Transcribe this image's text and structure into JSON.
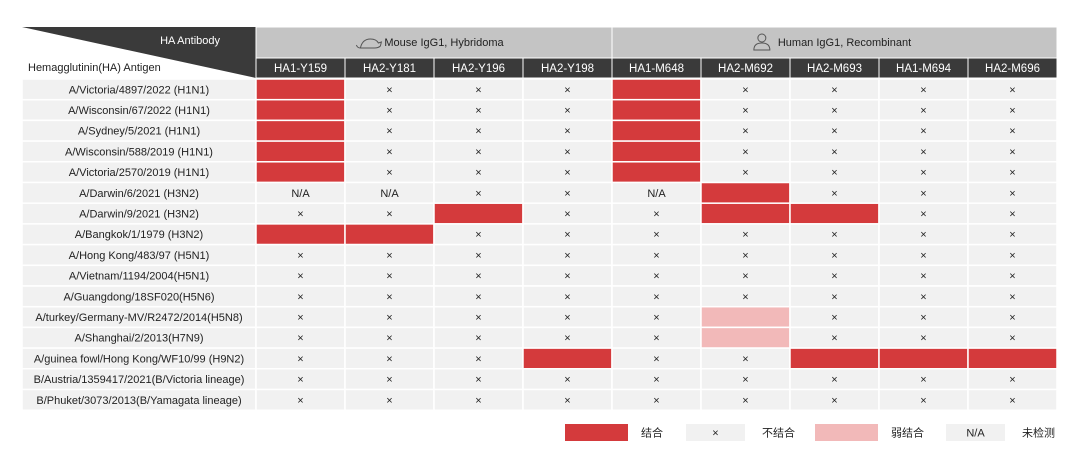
{
  "table": {
    "corner_top": "HA Antibody",
    "corner_bottom": "Hemagglutinin(HA) Antigen",
    "groups": [
      {
        "label": "Mouse IgG1, Hybridoma",
        "columns": [
          "HA1-Y159",
          "HA2-Y181",
          "HA2-Y196",
          "HA2-Y198"
        ]
      },
      {
        "label": "Human IgG1, Recombinant",
        "columns": [
          "HA1-M648",
          "HA2-M692",
          "HA2-M693",
          "HA1-M694",
          "HA2-M696"
        ]
      }
    ],
    "rows": [
      {
        "antigen": "A/Victoria/4897/2022 (H1N1)",
        "cells": [
          {
            "fill": "#d43a3c"
          },
          "×",
          "×",
          "×",
          {
            "fill": "#d43a3c"
          },
          "×",
          "×",
          "×",
          "×"
        ]
      },
      {
        "antigen": "A/Wisconsin/67/2022 (H1N1)",
        "cells": [
          {
            "fill": "#d43a3c"
          },
          "×",
          "×",
          "×",
          {
            "fill": "#d43a3c"
          },
          "×",
          "×",
          "×",
          "×"
        ]
      },
      {
        "antigen": "A/Sydney/5/2021 (H1N1)",
        "cells": [
          {
            "fill": "#d43a3c"
          },
          "×",
          "×",
          "×",
          {
            "fill": "#d43a3c"
          },
          "×",
          "×",
          "×",
          "×"
        ]
      },
      {
        "antigen": "A/Wisconsin/588/2019 (H1N1)",
        "cells": [
          {
            "fill": "#d43a3c"
          },
          "×",
          "×",
          "×",
          {
            "fill": "#d43a3c"
          },
          "×",
          "×",
          "×",
          "×"
        ]
      },
      {
        "antigen": "A/Victoria/2570/2019 (H1N1)",
        "cells": [
          {
            "fill": "#d43a3c"
          },
          "×",
          "×",
          "×",
          {
            "fill": "#d43a3c"
          },
          "×",
          "×",
          "×",
          "×"
        ]
      },
      {
        "antigen": "A/Darwin/6/2021 (H3N2)",
        "cells": [
          "N/A",
          "N/A",
          "×",
          "×",
          "N/A",
          {
            "fill": "#d43a3c"
          },
          "×",
          "×",
          "×"
        ]
      },
      {
        "antigen": "A/Darwin/9/2021 (H3N2)",
        "cells": [
          "×",
          "×",
          {
            "fill": "#d43a3c"
          },
          "×",
          "×",
          {
            "fill": "#d43a3c"
          },
          {
            "fill": "#d43a3c"
          },
          "×",
          "×"
        ]
      },
      {
        "antigen": "A/Bangkok/1/1979 (H3N2)",
        "cells": [
          {
            "fill": "#d43a3c"
          },
          {
            "fill": "#d43a3c"
          },
          "×",
          "×",
          "×",
          "×",
          "×",
          "×",
          "×"
        ]
      },
      {
        "antigen": "A/Hong Kong/483/97 (H5N1)",
        "cells": [
          "×",
          "×",
          "×",
          "×",
          "×",
          "×",
          "×",
          "×",
          "×"
        ]
      },
      {
        "antigen": "A/Vietnam/1194/2004(H5N1)",
        "cells": [
          "×",
          "×",
          "×",
          "×",
          "×",
          "×",
          "×",
          "×",
          "×"
        ]
      },
      {
        "antigen": "A/Guangdong/18SF020(H5N6)",
        "cells": [
          "×",
          "×",
          "×",
          "×",
          "×",
          "×",
          "×",
          "×",
          "×"
        ]
      },
      {
        "antigen": "A/turkey/Germany-MV/R2472/2014(H5N8)",
        "cells": [
          "×",
          "×",
          "×",
          "×",
          "×",
          {
            "fill": "#f2b9b9"
          },
          "×",
          "×",
          "×"
        ]
      },
      {
        "antigen": "A/Shanghai/2/2013(H7N9)",
        "cells": [
          "×",
          "×",
          "×",
          "×",
          "×",
          {
            "fill": "#f2b9b9"
          },
          "×",
          "×",
          "×"
        ]
      },
      {
        "antigen": "A/guinea fowl/Hong Kong/WF10/99 (H9N2)",
        "cells": [
          "×",
          "×",
          "×",
          {
            "fill": "#d43a3c"
          },
          "×",
          "×",
          {
            "fill": "#d43a3c"
          },
          {
            "fill": "#d43a3c"
          },
          {
            "fill": "#d43a3c"
          }
        ]
      },
      {
        "antigen": "B/Austria/1359417/2021(B/Victoria lineage)",
        "cells": [
          "×",
          "×",
          "×",
          "×",
          "×",
          "×",
          "×",
          "×",
          "×"
        ]
      },
      {
        "antigen": "B/Phuket/3073/2013(B/Yamagata lineage)",
        "cells": [
          "×",
          "×",
          "×",
          "×",
          "×",
          "×",
          "×",
          "×",
          "×"
        ]
      }
    ]
  },
  "legend": [
    {
      "swatch": "#d43a3c",
      "label": "结合"
    },
    {
      "symbol": "×",
      "label": "不结合"
    },
    {
      "swatch": "#f2b9b9",
      "label": "弱结合"
    },
    {
      "symbol": "N/A",
      "label": "未检测"
    }
  ]
}
